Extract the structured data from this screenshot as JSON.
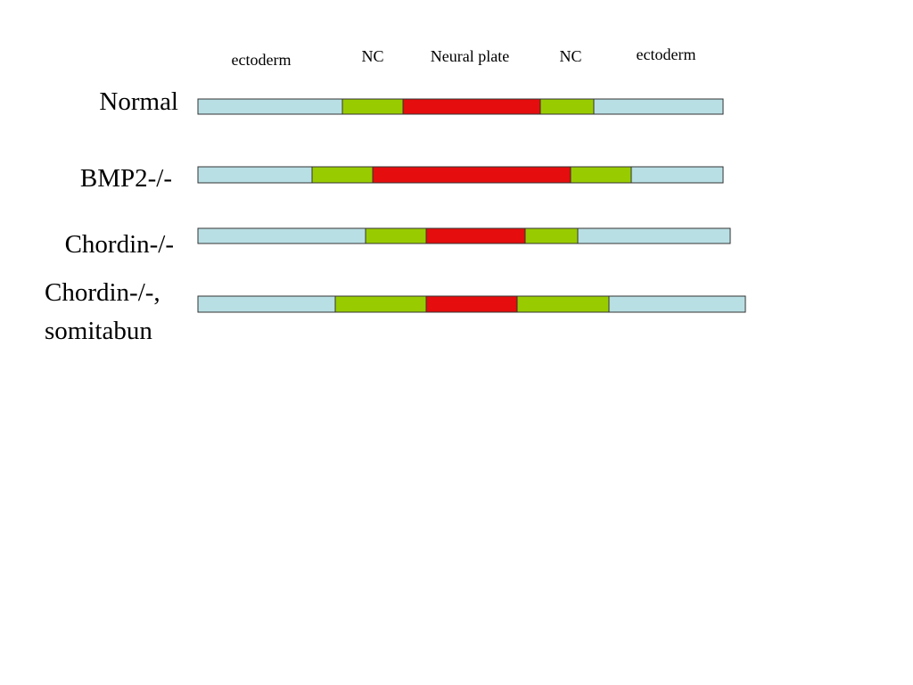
{
  "header": {
    "labels": [
      "ectoderm",
      "NC",
      "Neural plate",
      "NC",
      "ectoderm"
    ]
  },
  "rows": [
    {
      "label": [
        "Normal"
      ]
    },
    {
      "label": [
        "BMP2-/-"
      ]
    },
    {
      "label": [
        "Chordin-/-"
      ]
    },
    {
      "label": [
        "Chordin-/-,",
        "somitabun"
      ]
    }
  ]
}
